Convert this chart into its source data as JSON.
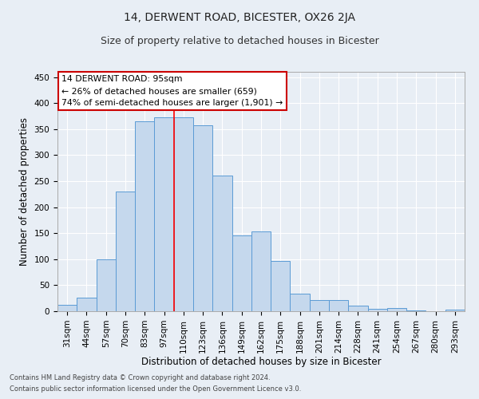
{
  "title": "14, DERWENT ROAD, BICESTER, OX26 2JA",
  "subtitle": "Size of property relative to detached houses in Bicester",
  "xlabel": "Distribution of detached houses by size in Bicester",
  "ylabel": "Number of detached properties",
  "footnote1": "Contains HM Land Registry data © Crown copyright and database right 2024.",
  "footnote2": "Contains public sector information licensed under the Open Government Licence v3.0.",
  "categories": [
    "31sqm",
    "44sqm",
    "57sqm",
    "70sqm",
    "83sqm",
    "97sqm",
    "110sqm",
    "123sqm",
    "136sqm",
    "149sqm",
    "162sqm",
    "175sqm",
    "188sqm",
    "201sqm",
    "214sqm",
    "228sqm",
    "241sqm",
    "254sqm",
    "267sqm",
    "280sqm",
    "293sqm"
  ],
  "values": [
    12,
    26,
    100,
    230,
    365,
    372,
    372,
    357,
    260,
    145,
    153,
    97,
    34,
    22,
    22,
    11,
    4,
    6,
    2,
    0,
    3
  ],
  "bar_color": "#c5d8ed",
  "bar_edge_color": "#5b9bd5",
  "red_line_x": 5.5,
  "annotation_title": "14 DERWENT ROAD: 95sqm",
  "annotation_line1": "← 26% of detached houses are smaller (659)",
  "annotation_line2": "74% of semi-detached houses are larger (1,901) →",
  "annotation_box_color": "#ffffff",
  "annotation_box_edge": "#cc0000",
  "ylim": [
    0,
    460
  ],
  "yticks": [
    0,
    50,
    100,
    150,
    200,
    250,
    300,
    350,
    400,
    450
  ],
  "bg_color": "#e8eef5",
  "grid_color": "#ffffff",
  "title_fontsize": 10,
  "subtitle_fontsize": 9,
  "axis_label_fontsize": 8.5,
  "tick_fontsize": 7.5,
  "annotation_fontsize": 7.8,
  "footnote_fontsize": 6.0
}
